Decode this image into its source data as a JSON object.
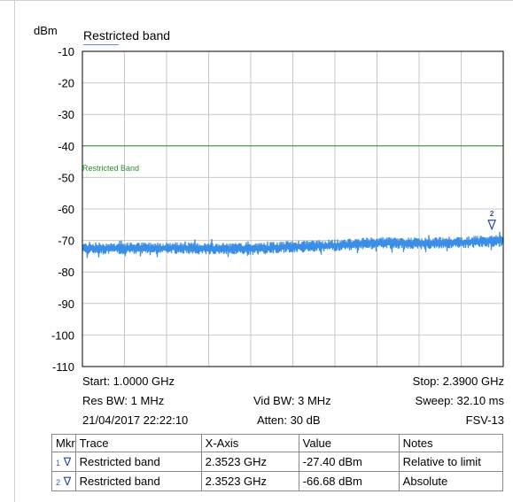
{
  "chart_data": {
    "type": "line",
    "title": "Restricted band",
    "ylabel": "dBm",
    "ylim": [
      -110,
      -10
    ],
    "y_ticks": [
      "-10",
      "-20",
      "-30",
      "-40",
      "-50",
      "-60",
      "-70",
      "-80",
      "-90",
      "-100",
      "-110"
    ],
    "xlim_ghz": [
      1.0,
      2.39
    ],
    "grid": true,
    "limit_line": {
      "name": "Restricted Band",
      "value_dbm": -40,
      "color": "#2e8b2e"
    },
    "series": [
      {
        "name": "Restricted band",
        "color": "#3a8ee6",
        "x_ghz": [
          1.0,
          1.139,
          1.278,
          1.417,
          1.556,
          1.695,
          1.834,
          1.973,
          2.112,
          2.251,
          2.39
        ],
        "y_dbm": [
          -72.5,
          -72.5,
          -72.4,
          -72.6,
          -72.7,
          -72.0,
          -71.6,
          -70.8,
          -71.0,
          -70.6,
          -70.1
        ]
      }
    ],
    "markers": [
      {
        "id": "2",
        "x_ghz": 2.3523,
        "y_dbm": -66.68
      }
    ]
  },
  "settings": {
    "start": "Start: 1.0000 GHz",
    "stop": "Stop: 2.3900 GHz",
    "res_bw": "Res BW: 1 MHz",
    "vid_bw": "Vid BW: 3 MHz",
    "sweep": "Sweep: 32.10 ms",
    "datetime": "21/04/2017 22:22:10",
    "atten": "Atten: 30 dB",
    "device": "FSV-13"
  },
  "marker_table": {
    "headers": [
      "Mkr",
      "Trace",
      "X-Axis",
      "Value",
      "Notes"
    ],
    "rows": [
      {
        "mkr": "1",
        "trace": "Restricted band",
        "x": "2.3523 GHz",
        "value": "-27.40 dBm",
        "notes": "Relative to limit"
      },
      {
        "mkr": "2",
        "trace": "Restricted band",
        "x": "2.3523 GHz",
        "value": "-66.68 dBm",
        "notes": "Absolute"
      }
    ]
  },
  "colors": {
    "grid": "#c8c8c8",
    "trace": "#3a8ee6",
    "limit": "#2e8b2e",
    "marker": "#2c4ba0"
  }
}
